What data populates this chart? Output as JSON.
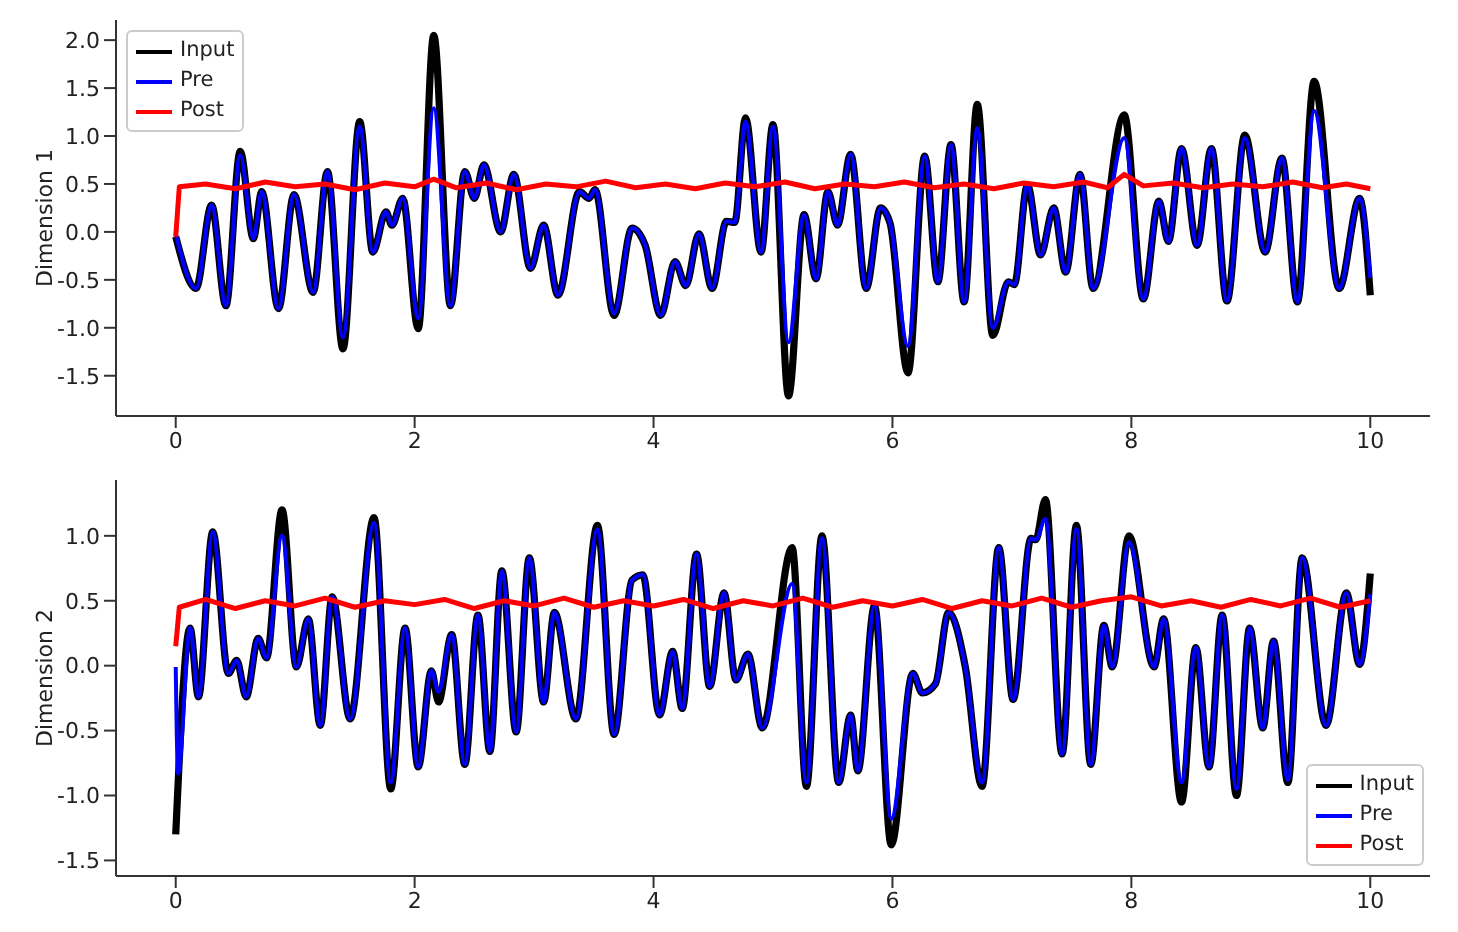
{
  "chart_data": [
    {
      "type": "line",
      "ylabel": "Dimension 1",
      "xlim": [
        -0.5,
        10.5
      ],
      "xticks": [
        0,
        2,
        4,
        6,
        8,
        10
      ],
      "ylim": [
        -1.92,
        2.21
      ],
      "yticks": [
        -1.5,
        {
          "value": -1,
          "label": "-1.0"
        },
        -0.5,
        {
          "value": 0,
          "label": "0.0"
        },
        0.5,
        {
          "value": 1,
          "label": "1.0"
        },
        1.5,
        {
          "value": 2,
          "label": "2.0"
        }
      ],
      "grid": false,
      "legend": "top left",
      "marker": "none",
      "line_style": "solid",
      "series": [
        {
          "name": "Input",
          "color": "#000000",
          "x": [
            0,
            0.17,
            0.3,
            0.42,
            0.54,
            0.65,
            0.72,
            0.86,
            0.99,
            1.15,
            1.27,
            1.4,
            1.54,
            1.65,
            1.76,
            1.81,
            1.9,
            2.03,
            2.16,
            2.3,
            2.42,
            2.5,
            2.58,
            2.72,
            2.83,
            2.97,
            3.08,
            3.2,
            3.38,
            3.46,
            3.51,
            3.67,
            3.82,
            3.93,
            4.06,
            4.18,
            4.27,
            4.38,
            4.49,
            4.61,
            4.68,
            4.77,
            4.9,
            5.0,
            5.13,
            5.26,
            5.36,
            5.46,
            5.54,
            5.65,
            5.78,
            5.9,
            5.98,
            6.13,
            6.27,
            6.38,
            6.49,
            6.6,
            6.71,
            6.84,
            6.97,
            7.02,
            7.13,
            7.24,
            7.35,
            7.45,
            7.57,
            7.68,
            7.94,
            8.1,
            8.23,
            8.31,
            8.42,
            8.55,
            8.67,
            8.8,
            8.95,
            9.12,
            9.26,
            9.39,
            9.53,
            9.74,
            9.91,
            10.0
          ],
          "values": [
            -0.05,
            -0.59,
            0.28,
            -0.77,
            0.84,
            -0.07,
            0.42,
            -0.8,
            0.39,
            -0.63,
            0.63,
            -1.22,
            1.15,
            -0.21,
            0.21,
            0.07,
            0.35,
            -1.01,
            2.05,
            -0.77,
            0.63,
            0.35,
            0.7,
            0.0,
            0.6,
            -0.38,
            0.07,
            -0.66,
            0.42,
            0.35,
            0.44,
            -0.87,
            0.04,
            -0.14,
            -0.87,
            -0.31,
            -0.56,
            -0.02,
            -0.59,
            0.11,
            0.1,
            1.19,
            -0.21,
            1.12,
            -1.71,
            0.18,
            -0.49,
            0.42,
            0.07,
            0.81,
            -0.59,
            0.25,
            0.09,
            -1.47,
            0.79,
            -0.52,
            0.91,
            -0.73,
            1.33,
            -1.08,
            -0.52,
            -0.55,
            0.49,
            -0.24,
            0.25,
            -0.42,
            0.6,
            -0.59,
            1.22,
            -0.7,
            0.32,
            -0.1,
            0.87,
            -0.14,
            0.87,
            -0.72,
            1.01,
            -0.21,
            0.77,
            -0.73,
            1.57,
            -0.59,
            0.35,
            -0.66
          ]
        },
        {
          "name": "Pre",
          "color": "#0000ff",
          "x": [
            0,
            0.17,
            0.3,
            0.42,
            0.54,
            0.65,
            0.72,
            0.86,
            0.99,
            1.15,
            1.27,
            1.4,
            1.54,
            1.65,
            1.76,
            1.81,
            1.9,
            2.03,
            2.16,
            2.3,
            2.42,
            2.5,
            2.58,
            2.72,
            2.83,
            2.97,
            3.08,
            3.2,
            3.38,
            3.46,
            3.51,
            3.67,
            3.82,
            3.93,
            4.06,
            4.18,
            4.27,
            4.38,
            4.49,
            4.61,
            4.68,
            4.77,
            4.9,
            5.0,
            5.13,
            5.26,
            5.36,
            5.46,
            5.54,
            5.65,
            5.78,
            5.9,
            5.98,
            6.13,
            6.27,
            6.38,
            6.49,
            6.6,
            6.71,
            6.84,
            6.97,
            7.02,
            7.13,
            7.24,
            7.35,
            7.45,
            7.57,
            7.68,
            7.94,
            8.1,
            8.23,
            8.31,
            8.42,
            8.55,
            8.67,
            8.8,
            8.95,
            9.12,
            9.26,
            9.39,
            9.53,
            9.74,
            9.91,
            10.0
          ],
          "values": [
            -0.02,
            -0.59,
            0.28,
            -0.77,
            0.8,
            -0.07,
            0.42,
            -0.8,
            0.39,
            -0.63,
            0.63,
            -1.1,
            1.1,
            -0.21,
            0.21,
            0.07,
            0.35,
            -0.9,
            1.29,
            -0.77,
            0.63,
            0.35,
            0.7,
            0.0,
            0.6,
            -0.38,
            0.07,
            -0.66,
            0.42,
            0.35,
            0.44,
            -0.85,
            0.04,
            -0.14,
            -0.87,
            -0.31,
            -0.56,
            -0.02,
            -0.59,
            0.11,
            0.1,
            1.15,
            -0.21,
            1.1,
            -1.15,
            0.18,
            -0.49,
            0.42,
            0.07,
            0.81,
            -0.59,
            0.25,
            0.09,
            -1.19,
            0.79,
            -0.52,
            0.91,
            -0.73,
            1.08,
            -1.0,
            -0.52,
            -0.55,
            0.49,
            -0.24,
            0.25,
            -0.42,
            0.6,
            -0.59,
            0.98,
            -0.7,
            0.32,
            -0.1,
            0.87,
            -0.14,
            0.87,
            -0.72,
            0.98,
            -0.21,
            0.77,
            -0.73,
            1.26,
            -0.59,
            0.35,
            -0.48
          ]
        },
        {
          "name": "Post",
          "color": "#ff0000",
          "x": [
            0,
            0.03,
            0.25,
            0.5,
            0.75,
            1.0,
            1.25,
            1.5,
            1.75,
            2.0,
            2.16,
            2.35,
            2.6,
            2.85,
            3.1,
            3.35,
            3.6,
            3.85,
            4.1,
            4.35,
            4.6,
            4.85,
            5.1,
            5.35,
            5.6,
            5.85,
            6.1,
            6.35,
            6.6,
            6.85,
            7.1,
            7.35,
            7.6,
            7.8,
            7.94,
            8.1,
            8.35,
            8.6,
            8.85,
            9.1,
            9.35,
            9.6,
            9.8,
            10.0
          ],
          "values": [
            -0.05,
            0.47,
            0.5,
            0.45,
            0.52,
            0.47,
            0.5,
            0.44,
            0.51,
            0.47,
            0.55,
            0.46,
            0.51,
            0.44,
            0.5,
            0.47,
            0.53,
            0.46,
            0.5,
            0.45,
            0.51,
            0.47,
            0.52,
            0.45,
            0.5,
            0.47,
            0.52,
            0.46,
            0.5,
            0.45,
            0.51,
            0.47,
            0.52,
            0.46,
            0.6,
            0.48,
            0.51,
            0.46,
            0.5,
            0.47,
            0.52,
            0.46,
            0.5,
            0.45
          ]
        }
      ]
    },
    {
      "type": "line",
      "ylabel": "Dimension 2",
      "xlim": [
        -0.5,
        10.5
      ],
      "xticks": [
        0,
        2,
        4,
        6,
        8,
        10
      ],
      "ylim": [
        -1.62,
        1.43
      ],
      "yticks": [
        -1.5,
        {
          "value": -1,
          "label": "-1.0"
        },
        -0.5,
        {
          "value": 0,
          "label": "0.0"
        },
        0.5,
        {
          "value": 1,
          "label": "1.0"
        }
      ],
      "grid": false,
      "legend": "bottom right",
      "marker": "none",
      "line_style": "solid",
      "series": [
        {
          "name": "Input",
          "color": "#000000",
          "x": [
            0,
            0.12,
            0.19,
            0.31,
            0.44,
            0.51,
            0.59,
            0.69,
            0.76,
            0.89,
            1.01,
            1.11,
            1.21,
            1.31,
            1.46,
            1.66,
            1.8,
            1.92,
            2.03,
            2.14,
            2.2,
            2.31,
            2.42,
            2.53,
            2.63,
            2.73,
            2.85,
            2.96,
            3.08,
            3.17,
            3.35,
            3.53,
            3.67,
            3.82,
            3.91,
            4.05,
            4.16,
            4.24,
            4.36,
            4.47,
            4.59,
            4.69,
            4.79,
            4.91,
            5.16,
            5.28,
            5.41,
            5.55,
            5.65,
            5.71,
            5.85,
            5.99,
            6.17,
            6.25,
            6.36,
            6.47,
            6.61,
            6.75,
            6.89,
            7.01,
            7.16,
            7.2,
            7.28,
            7.42,
            7.54,
            7.66,
            7.77,
            7.84,
            7.98,
            8.19,
            8.27,
            8.42,
            8.54,
            8.65,
            8.76,
            8.88,
            8.99,
            9.1,
            9.19,
            9.31,
            9.43,
            9.63,
            9.8,
            9.91,
            10.0
          ],
          "values": [
            -1.3,
            0.29,
            -0.24,
            1.03,
            -0.06,
            0.04,
            -0.24,
            0.21,
            0.06,
            1.2,
            -0.01,
            0.36,
            -0.46,
            0.53,
            -0.41,
            1.14,
            -0.95,
            0.29,
            -0.78,
            -0.04,
            -0.28,
            0.24,
            -0.76,
            0.39,
            -0.66,
            0.73,
            -0.51,
            0.83,
            -0.28,
            0.41,
            -0.41,
            1.08,
            -0.53,
            0.66,
            0.7,
            -0.38,
            0.11,
            -0.33,
            0.86,
            -0.16,
            0.56,
            -0.11,
            0.09,
            -0.48,
            0.91,
            -0.93,
            1.0,
            -0.9,
            -0.38,
            -0.81,
            0.46,
            -1.38,
            -0.06,
            -0.21,
            -0.14,
            0.41,
            -0.01,
            -0.93,
            0.91,
            -0.26,
            0.98,
            0.97,
            1.28,
            -0.68,
            1.08,
            -0.76,
            0.31,
            -0.01,
            1.0,
            -0.01,
            0.36,
            -1.05,
            0.14,
            -0.78,
            0.39,
            -1.0,
            0.29,
            -0.48,
            0.19,
            -0.9,
            0.83,
            -0.46,
            0.56,
            0.01,
            0.71
          ]
        },
        {
          "name": "Pre",
          "color": "#0000ff",
          "x": [
            0,
            0.02,
            0.12,
            0.19,
            0.31,
            0.44,
            0.51,
            0.59,
            0.69,
            0.76,
            0.89,
            1.01,
            1.11,
            1.21,
            1.31,
            1.46,
            1.66,
            1.8,
            1.92,
            2.03,
            2.14,
            2.2,
            2.31,
            2.42,
            2.53,
            2.63,
            2.73,
            2.85,
            2.96,
            3.08,
            3.17,
            3.35,
            3.53,
            3.67,
            3.82,
            3.91,
            4.05,
            4.16,
            4.24,
            4.36,
            4.47,
            4.59,
            4.69,
            4.79,
            4.91,
            5.16,
            5.28,
            5.41,
            5.55,
            5.65,
            5.71,
            5.85,
            5.99,
            6.17,
            6.25,
            6.36,
            6.47,
            6.61,
            6.75,
            6.89,
            7.01,
            7.16,
            7.2,
            7.28,
            7.42,
            7.54,
            7.66,
            7.77,
            7.84,
            7.98,
            8.19,
            8.27,
            8.42,
            8.54,
            8.65,
            8.76,
            8.88,
            8.99,
            9.1,
            9.19,
            9.31,
            9.43,
            9.63,
            9.8,
            9.91,
            10.0
          ],
          "values": [
            -0.01,
            -0.83,
            0.29,
            -0.24,
            1.03,
            -0.06,
            0.04,
            -0.24,
            0.21,
            0.06,
            1.0,
            -0.01,
            0.36,
            -0.46,
            0.53,
            -0.41,
            1.1,
            -0.9,
            0.29,
            -0.78,
            -0.04,
            -0.2,
            0.24,
            -0.76,
            0.39,
            -0.66,
            0.73,
            -0.51,
            0.83,
            -0.28,
            0.41,
            -0.41,
            1.05,
            -0.53,
            0.66,
            0.7,
            -0.38,
            0.11,
            -0.33,
            0.86,
            -0.16,
            0.56,
            -0.11,
            0.09,
            -0.48,
            0.63,
            -0.9,
            0.98,
            -0.9,
            -0.38,
            -0.81,
            0.46,
            -1.18,
            -0.06,
            -0.21,
            -0.14,
            0.41,
            -0.01,
            -0.9,
            0.91,
            -0.26,
            0.98,
            0.97,
            1.13,
            -0.68,
            1.05,
            -0.76,
            0.31,
            -0.01,
            0.95,
            -0.01,
            0.36,
            -0.9,
            0.14,
            -0.78,
            0.39,
            -0.95,
            0.29,
            -0.48,
            0.19,
            -0.88,
            0.83,
            -0.46,
            0.56,
            0.01,
            0.55
          ]
        },
        {
          "name": "Post",
          "color": "#ff0000",
          "x": [
            0,
            0.03,
            0.25,
            0.5,
            0.75,
            1.0,
            1.25,
            1.5,
            1.75,
            2.0,
            2.25,
            2.5,
            2.75,
            3.0,
            3.25,
            3.5,
            3.75,
            4.0,
            4.25,
            4.5,
            4.75,
            5.0,
            5.25,
            5.5,
            5.75,
            6.0,
            6.25,
            6.5,
            6.75,
            7.0,
            7.25,
            7.5,
            7.75,
            8.0,
            8.25,
            8.5,
            8.75,
            9.0,
            9.25,
            9.5,
            9.75,
            10.0
          ],
          "values": [
            0.15,
            0.45,
            0.51,
            0.44,
            0.5,
            0.46,
            0.52,
            0.45,
            0.5,
            0.47,
            0.51,
            0.44,
            0.5,
            0.46,
            0.52,
            0.45,
            0.5,
            0.46,
            0.51,
            0.44,
            0.5,
            0.46,
            0.52,
            0.45,
            0.5,
            0.46,
            0.51,
            0.44,
            0.5,
            0.46,
            0.52,
            0.45,
            0.5,
            0.53,
            0.46,
            0.5,
            0.45,
            0.51,
            0.46,
            0.52,
            0.45,
            0.5
          ]
        }
      ]
    }
  ]
}
